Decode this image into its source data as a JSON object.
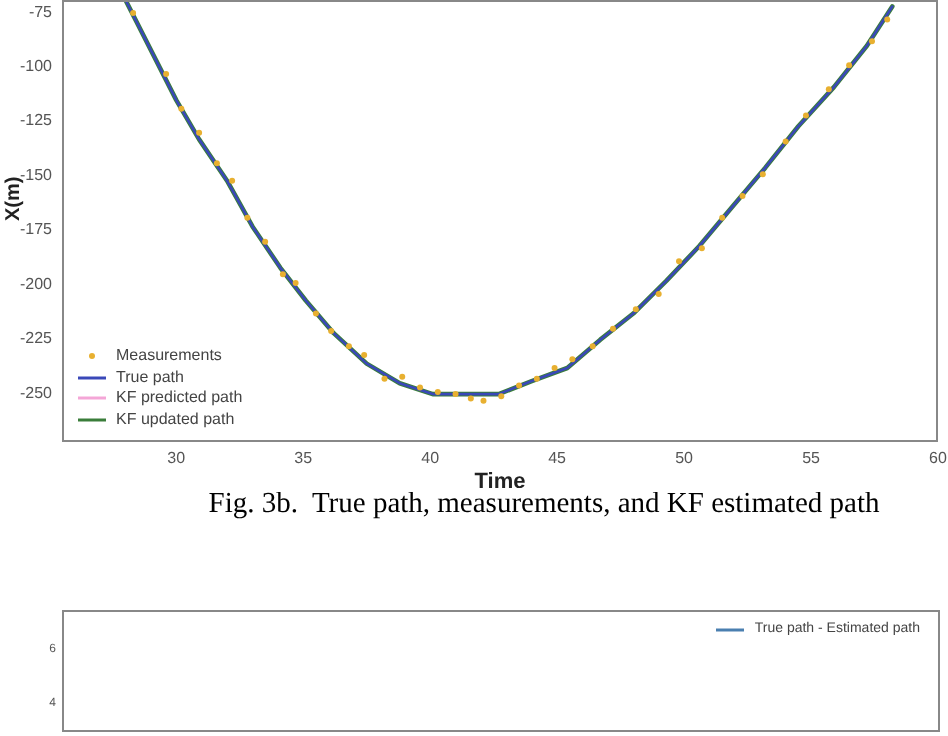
{
  "chart_data": [
    {
      "type": "line",
      "xlabel": "Time",
      "ylabel": "X(m)",
      "xlim": [
        25.5,
        60
      ],
      "ylim": [
        -273,
        -70
      ],
      "xticks": [
        30,
        35,
        40,
        45,
        50,
        55,
        60
      ],
      "yticks": [
        -75,
        -100,
        -125,
        -150,
        -175,
        -200,
        -225,
        -250
      ],
      "legend": "bottom left",
      "marker": "none",
      "line_style": "solid",
      "annotations": [
        "Fig. 3b.  True path, measurements, and KF estimated path"
      ],
      "series": [
        {
          "name": "Measurements",
          "type": "scatter",
          "marker": "circle",
          "color": "#e8b030",
          "x": [
            28.3,
            29.6,
            30.2,
            30.9,
            31.6,
            32.2,
            32.8,
            33.5,
            34.2,
            34.7,
            35.5,
            36.1,
            36.8,
            37.4,
            38.2,
            38.9,
            39.6,
            40.3,
            41.0,
            41.6,
            42.1,
            42.8,
            43.5,
            44.2,
            44.9,
            45.6,
            46.4,
            47.2,
            48.1,
            49.0,
            49.8,
            50.7,
            51.5,
            52.3,
            53.1,
            54.0,
            54.8,
            55.7,
            56.5,
            57.4,
            58.0
          ],
          "values": [
            -76,
            -104,
            -120,
            -131,
            -145,
            -153,
            -170,
            -181,
            -196,
            -200,
            -214,
            -222,
            -229,
            -233,
            -244,
            -243,
            -248,
            -250,
            -251,
            -253,
            -254,
            -252,
            -247,
            -244,
            -239,
            -235,
            -229,
            -221,
            -212,
            -205,
            -190,
            -184,
            -170,
            -160,
            -150,
            -135,
            -123,
            -111,
            -100,
            -89,
            -79
          ]
        },
        {
          "name": "True path",
          "color": "#3a48b8",
          "x": [
            28,
            30,
            30.9,
            32,
            33,
            34.1,
            35.1,
            36.2,
            37.5,
            38.8,
            40.1,
            41.4,
            42.7,
            44,
            45.4,
            46.7,
            48,
            49.3,
            50.6,
            51.9,
            53.2,
            54.5,
            55.9,
            57.2,
            58.2
          ],
          "values": [
            -70,
            -116,
            -134,
            -153,
            -174,
            -193,
            -208,
            -223,
            -237,
            -246,
            -251,
            -251,
            -251,
            -245,
            -239,
            -226,
            -214,
            -199,
            -183,
            -165,
            -147,
            -128,
            -110,
            -91,
            -73
          ]
        },
        {
          "name": "KF predicted path",
          "color": "#f4a6d7"
        },
        {
          "name": "KF updated path",
          "color": "#3a7d3a",
          "x": [
            28,
            30,
            30.9,
            32,
            33,
            34.1,
            35.1,
            36.2,
            37.5,
            38.8,
            40.1,
            41.4,
            42.7,
            44,
            45.4,
            46.7,
            48,
            49.3,
            50.6,
            51.9,
            53.2,
            54.5,
            55.9,
            57.2,
            58.2
          ],
          "values": [
            -70,
            -116,
            -134,
            -153,
            -174,
            -193,
            -208,
            -223,
            -237,
            -246,
            -251,
            -251,
            -251,
            -245,
            -239,
            -226,
            -214,
            -199,
            -183,
            -165,
            -147,
            -128,
            -110,
            -91,
            -73
          ]
        }
      ]
    },
    {
      "type": "other",
      "legend": "top right",
      "annotations": [
        "6",
        "4"
      ],
      "series": [
        {
          "name": "True path - Estimated path",
          "color": "#4a7fb0"
        }
      ]
    }
  ]
}
